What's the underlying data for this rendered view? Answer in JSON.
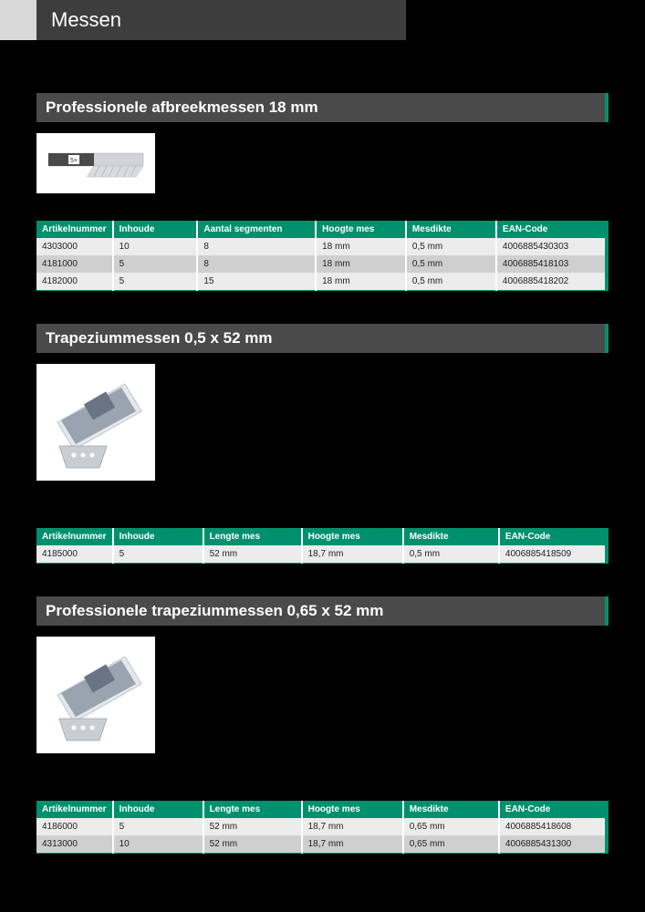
{
  "page_title": "Messen",
  "colors": {
    "accent": "#00906d",
    "header_bg": "#3d3d3d",
    "section_bg": "#4a4a4a",
    "row_bg": "#ececec",
    "row_alt_bg": "#cfcfcf",
    "page_bg": "#000000",
    "text_light": "#ffffff",
    "text_dark": "#222222"
  },
  "sections": [
    {
      "title": "Professionele afbreekmessen 18 mm",
      "image": "snap-blade",
      "table": {
        "columns": [
          "Artikelnummer",
          "Inhoude",
          "Aantal segmenten",
          "Hoogte mes",
          "Mesdikte",
          "EAN-Code"
        ],
        "col_widths": [
          "12.5%",
          "15%",
          "21%",
          "16%",
          "16%",
          "19.5%"
        ],
        "rows": [
          [
            "4303000",
            "10",
            "8",
            "18 mm",
            "0,5 mm",
            "4006885430303"
          ],
          [
            "4181000",
            "5",
            "8",
            "18 mm",
            "0,5 mm",
            "4006885418103"
          ],
          [
            "4182000",
            "5",
            "15",
            "18 mm",
            "0,5 mm",
            "4006885418202"
          ]
        ]
      }
    },
    {
      "title": "Trapeziummessen 0,5 x 52 mm",
      "image": "trapezoid-blade",
      "table": {
        "columns": [
          "Artikelnummer",
          "Inhoude",
          "Lengte mes",
          "Hoogte mes",
          "Mesdikte",
          "EAN-Code"
        ],
        "col_widths": [
          "12.5%",
          "16%",
          "17.5%",
          "18%",
          "17%",
          "19%"
        ],
        "rows": [
          [
            "4185000",
            "5",
            "52 mm",
            "18,7 mm",
            "0,5 mm",
            "4006885418509"
          ]
        ]
      }
    },
    {
      "title": "Professionele trapeziummessen 0,65 x 52 mm",
      "image": "trapezoid-blade",
      "table": {
        "columns": [
          "Artikelnummer",
          "Inhoude",
          "Lengte mes",
          "Hoogte mes",
          "Mesdikte",
          "EAN-Code"
        ],
        "col_widths": [
          "12.5%",
          "16%",
          "17.5%",
          "18%",
          "17%",
          "19%"
        ],
        "rows": [
          [
            "4186000",
            "5",
            "52 mm",
            "18,7 mm",
            "0,65 mm",
            "4006885418608"
          ],
          [
            "4313000",
            "10",
            "52 mm",
            "18,7 mm",
            "0,65 mm",
            "4006885431300"
          ]
        ]
      }
    }
  ]
}
